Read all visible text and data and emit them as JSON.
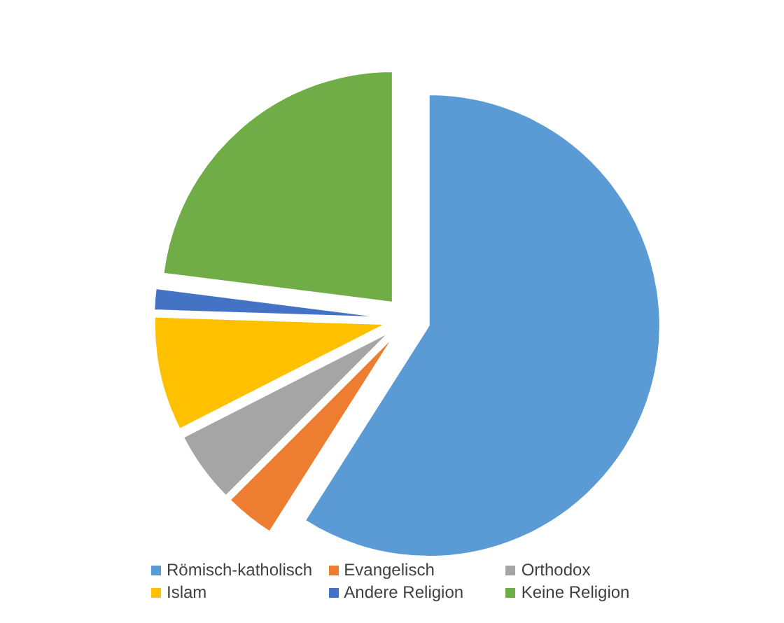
{
  "chart_data": {
    "type": "pie",
    "categories": [
      "Römisch-katholisch",
      "Evangelisch",
      "Orthodox",
      "Islam",
      "Andere Religion",
      "Keine Religion"
    ],
    "values": [
      59,
      3.5,
      5,
      8,
      1.5,
      23
    ],
    "colors": [
      "#5b9bd5",
      "#ed7d31",
      "#a5a5a5",
      "#ffc000",
      "#4472c4",
      "#70ad47"
    ],
    "legend": "bottom"
  }
}
